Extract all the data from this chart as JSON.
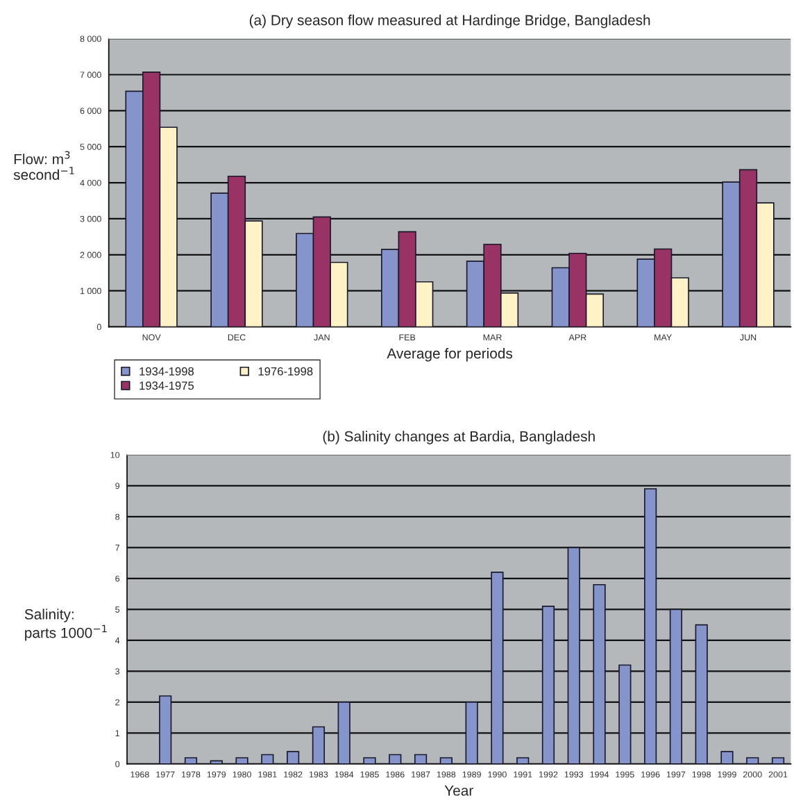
{
  "chart_data": [
    {
      "type": "bar",
      "title": "(a) Dry season flow measured at Hardinge Bridge, Bangladesh",
      "xlabel": "Average for periods",
      "ylabel": "Flow: m$^{3}$\nsecond$^{−1}$",
      "categories": [
        "NOV",
        "DEC",
        "JAN",
        "FEB",
        "MAR",
        "APR",
        "MAY",
        "JUN"
      ],
      "series": [
        {
          "name": "1934-1998",
          "color": "#8595cc",
          "values": [
            6540,
            3710,
            2590,
            2150,
            1820,
            1640,
            1880,
            4020
          ]
        },
        {
          "name": "1934-1975",
          "color": "#993366",
          "values": [
            7070,
            4180,
            3050,
            2640,
            2290,
            2040,
            2160,
            4360
          ]
        },
        {
          "name": "1976-1998",
          "color": "#fff2c6",
          "values": [
            5540,
            2940,
            1790,
            1250,
            940,
            910,
            1360,
            3440
          ]
        }
      ],
      "ylim": [
        0,
        8000
      ],
      "yticks": [
        0,
        {
          "value": 1000,
          "label": "1 000"
        },
        {
          "value": 2000,
          "label": "2 000"
        },
        {
          "value": 3000,
          "label": "3 000"
        },
        {
          "value": 4000,
          "label": "4 000"
        },
        {
          "value": 5000,
          "label": "5 000"
        },
        {
          "value": 6000,
          "label": "6 000"
        },
        {
          "value": 7000,
          "label": "7 000"
        },
        {
          "value": 8000,
          "label": "8 000"
        }
      ],
      "grid": "y",
      "legend": "bottom left"
    },
    {
      "type": "bar",
      "title": "(b) Salinity changes at Bardia, Bangladesh",
      "xlabel": "Year",
      "ylabel": "Salinity:\nparts 1000$^{−1}$",
      "categories": [
        "1968",
        "1977",
        "1978",
        "1979",
        "1980",
        "1981",
        "1982",
        "1983",
        "1984",
        "1985",
        "1986",
        "1987",
        "1988",
        "1989",
        "1990",
        "1991",
        "1992",
        "1993",
        "1994",
        "1995",
        "1996",
        "1997",
        "1998",
        "1999",
        "2000",
        "2001"
      ],
      "series": [
        {
          "color": "#8595cc",
          "values": [
            null,
            2.2,
            0.2,
            0.1,
            0.2,
            0.3,
            0.4,
            1.2,
            2.0,
            0.2,
            0.3,
            0.3,
            0.2,
            2.0,
            6.2,
            0.2,
            5.1,
            7.0,
            5.8,
            3.2,
            8.9,
            5.0,
            4.5,
            0.4,
            0.2,
            0.2
          ]
        }
      ],
      "ylim": [
        0,
        10
      ],
      "yticks": [
        0,
        1,
        2,
        3,
        4,
        5,
        6,
        7,
        8,
        9,
        10
      ],
      "grid": "y",
      "legend": false
    }
  ]
}
